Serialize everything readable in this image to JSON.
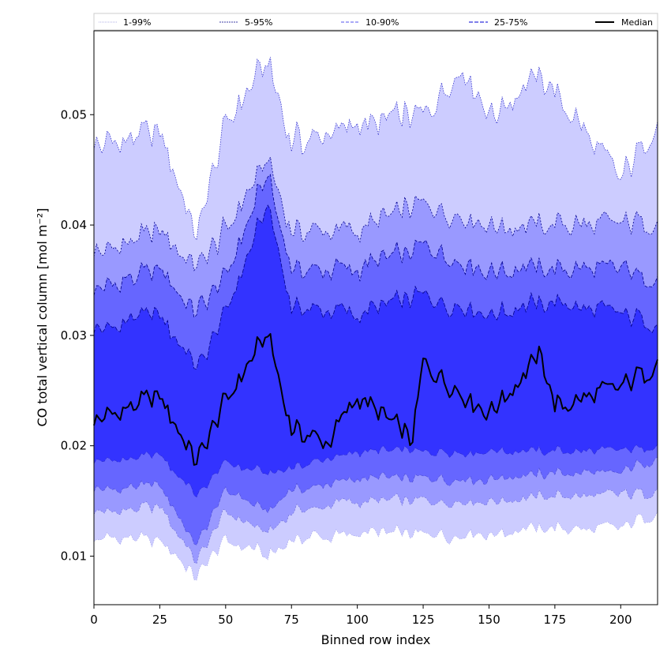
{
  "chart_data": {
    "type": "area",
    "title": "",
    "xlabel": "Binned row index",
    "ylabel": "CO total vertical column [mol m⁻²]",
    "xlim": [
      0,
      214
    ],
    "ylim": [
      0.0056,
      0.0576
    ],
    "xticks": [
      0,
      25,
      50,
      75,
      100,
      125,
      150,
      175,
      200
    ],
    "yticks": [
      0.01,
      0.02,
      0.03,
      0.04,
      0.05
    ],
    "ytick_labels": [
      "0.01",
      "0.02",
      "0.03",
      "0.04",
      "0.05"
    ],
    "grid": false,
    "legend_position": "top, spanning width",
    "bins": 215,
    "colors": {
      "band_1_99": "#ccccff",
      "band_5_95": "#9999ff",
      "band_10_90": "#6666ff",
      "band_25_75": "#3333ff",
      "median": "#000000",
      "edge": "#00008b"
    },
    "legend": [
      {
        "label": "1-99%",
        "style": "thin-dotted"
      },
      {
        "label": "5-95%",
        "style": "thin-dashed"
      },
      {
        "label": "10-90%",
        "style": "dashed"
      },
      {
        "label": "25-75%",
        "style": "dashed"
      },
      {
        "label": "Median",
        "style": "solid"
      }
    ],
    "series": [
      {
        "name": "Median",
        "points": [
          [
            0,
            0.0222
          ],
          [
            25,
            0.0245
          ],
          [
            39,
            0.0185
          ],
          [
            50,
            0.024
          ],
          [
            66,
            0.0302
          ],
          [
            75,
            0.0215
          ],
          [
            89,
            0.0203
          ],
          [
            100,
            0.0245
          ],
          [
            121,
            0.0205
          ],
          [
            125,
            0.0275
          ],
          [
            150,
            0.023
          ],
          [
            170,
            0.0282
          ],
          [
            175,
            0.0235
          ],
          [
            200,
            0.0252
          ],
          [
            214,
            0.0277
          ]
        ]
      },
      {
        "name": "25-75%",
        "points": [
          [
            0,
            0.0185,
            0.0305
          ],
          [
            25,
            0.0192,
            0.032
          ],
          [
            39,
            0.0155,
            0.027
          ],
          [
            50,
            0.0185,
            0.032
          ],
          [
            66,
            0.0175,
            0.042
          ],
          [
            75,
            0.018,
            0.0325
          ],
          [
            100,
            0.0195,
            0.032
          ],
          [
            125,
            0.0195,
            0.0335
          ],
          [
            150,
            0.0195,
            0.032
          ],
          [
            175,
            0.0195,
            0.033
          ],
          [
            200,
            0.0195,
            0.032
          ],
          [
            214,
            0.02,
            0.031
          ]
        ]
      },
      {
        "name": "10-90%",
        "points": [
          [
            0,
            0.016,
            0.034
          ],
          [
            25,
            0.0165,
            0.036
          ],
          [
            39,
            0.011,
            0.032
          ],
          [
            50,
            0.016,
            0.0355
          ],
          [
            66,
            0.014,
            0.0445
          ],
          [
            75,
            0.016,
            0.036
          ],
          [
            100,
            0.017,
            0.036
          ],
          [
            125,
            0.017,
            0.038
          ],
          [
            150,
            0.017,
            0.036
          ],
          [
            175,
            0.0175,
            0.036
          ],
          [
            200,
            0.0175,
            0.036
          ],
          [
            214,
            0.019,
            0.035
          ]
        ]
      },
      {
        "name": "5-95%",
        "points": [
          [
            0,
            0.014,
            0.0375
          ],
          [
            25,
            0.0145,
            0.0395
          ],
          [
            39,
            0.0095,
            0.036
          ],
          [
            50,
            0.014,
            0.0395
          ],
          [
            66,
            0.012,
            0.046
          ],
          [
            75,
            0.014,
            0.0395
          ],
          [
            100,
            0.015,
            0.0395
          ],
          [
            125,
            0.015,
            0.042
          ],
          [
            150,
            0.015,
            0.04
          ],
          [
            175,
            0.0155,
            0.04
          ],
          [
            200,
            0.0155,
            0.04
          ],
          [
            214,
            0.016,
            0.0405
          ]
        ]
      },
      {
        "name": "1-99%",
        "points": [
          [
            0,
            0.0115,
            0.047
          ],
          [
            25,
            0.0115,
            0.0485
          ],
          [
            39,
            0.008,
            0.039
          ],
          [
            50,
            0.0115,
            0.049
          ],
          [
            66,
            0.01,
            0.055
          ],
          [
            75,
            0.0115,
            0.0475
          ],
          [
            100,
            0.012,
            0.049
          ],
          [
            125,
            0.012,
            0.05
          ],
          [
            140,
            0.012,
            0.0545
          ],
          [
            150,
            0.012,
            0.05
          ],
          [
            170,
            0.0125,
            0.0535
          ],
          [
            200,
            0.0125,
            0.044
          ],
          [
            214,
            0.014,
            0.0495
          ]
        ]
      }
    ]
  }
}
